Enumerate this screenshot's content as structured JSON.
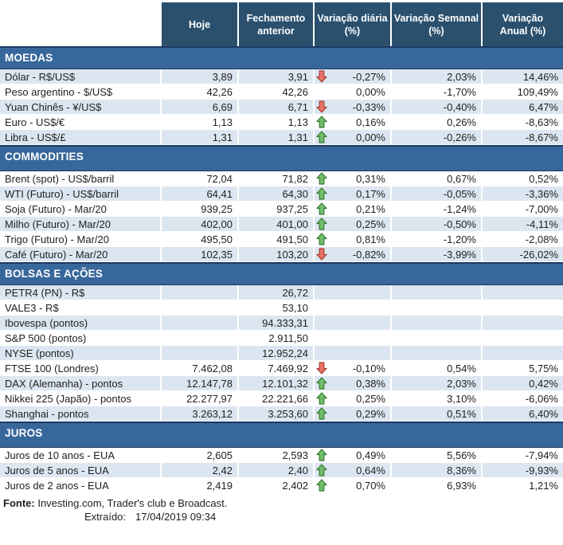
{
  "header": {
    "columns": [
      "",
      "Hoje",
      "Fechamento\nanterior",
      "Variação diária\n(%)",
      "Variação Semanal\n(%)",
      "Variação\nAnual (%)"
    ]
  },
  "sections": [
    {
      "title": "MOEDAS",
      "zebra_first": "shaded",
      "rows": [
        {
          "label": "Dólar - R$/US$",
          "hoje": "3,89",
          "fechamento": "3,91",
          "arrow": "down",
          "diaria": "-0,27%",
          "semanal": "2,03%",
          "anual": "14,46%"
        },
        {
          "label": "Peso argentino - $/US$",
          "hoje": "42,26",
          "fechamento": "42,26",
          "arrow": "none",
          "diaria": "0,00%",
          "semanal": "-1,70%",
          "anual": "109,49%"
        },
        {
          "label": "Yuan Chinês - ¥/US$",
          "hoje": "6,69",
          "fechamento": "6,71",
          "arrow": "down",
          "diaria": "-0,33%",
          "semanal": "-0,40%",
          "anual": "6,47%"
        },
        {
          "label": "Euro - US$/€",
          "hoje": "1,13",
          "fechamento": "1,13",
          "arrow": "up",
          "diaria": "0,16%",
          "semanal": "0,26%",
          "anual": "-8,63%"
        },
        {
          "label": "Libra - US$/£",
          "hoje": "1,31",
          "fechamento": "1,31",
          "arrow": "up",
          "diaria": "0,00%",
          "semanal": "-0,26%",
          "anual": "-8,67%"
        }
      ]
    },
    {
      "title": "COMMODITIES",
      "zebra_first": "plain",
      "rows": [
        {
          "label": "Brent (spot) - US$/barril",
          "hoje": "72,04",
          "fechamento": "71,82",
          "arrow": "up",
          "diaria": "0,31%",
          "semanal": "0,67%",
          "anual": "0,52%"
        },
        {
          "label": "WTI (Futuro) - US$/barril",
          "hoje": "64,41",
          "fechamento": "64,30",
          "arrow": "up",
          "diaria": "0,17%",
          "semanal": "-0,05%",
          "anual": "-3,36%"
        },
        {
          "label": "Soja (Futuro) - Mar/20",
          "hoje": "939,25",
          "fechamento": "937,25",
          "arrow": "up",
          "diaria": "0,21%",
          "semanal": "-1,24%",
          "anual": "-7,00%"
        },
        {
          "label": "Milho (Futuro) - Mar/20",
          "hoje": "402,00",
          "fechamento": "401,00",
          "arrow": "up",
          "diaria": "0,25%",
          "semanal": "-0,50%",
          "anual": "-4,11%"
        },
        {
          "label": "Trigo (Futuro) - Mar/20",
          "hoje": "495,50",
          "fechamento": "491,50",
          "arrow": "up",
          "diaria": "0,81%",
          "semanal": "-1,20%",
          "anual": "-2,08%"
        },
        {
          "label": "Café (Futuro) - Mar/20",
          "hoje": "102,35",
          "fechamento": "103,20",
          "arrow": "down",
          "diaria": "-0,82%",
          "semanal": "-3,99%",
          "anual": "-26,02%"
        }
      ]
    },
    {
      "title": "BOLSAS E AÇÕES",
      "zebra_first": "shaded",
      "rows": [
        {
          "label": "PETR4 (PN) - R$",
          "hoje": "",
          "fechamento": "26,72",
          "arrow": "none",
          "diaria": "",
          "semanal": "",
          "anual": ""
        },
        {
          "label": "VALE3 - R$",
          "hoje": "",
          "fechamento": "53,10",
          "arrow": "none",
          "diaria": "",
          "semanal": "",
          "anual": ""
        },
        {
          "label": "Ibovespa (pontos)",
          "hoje": "",
          "fechamento": "94.333,31",
          "arrow": "none",
          "diaria": "",
          "semanal": "",
          "anual": ""
        },
        {
          "label": "S&P 500 (pontos)",
          "hoje": "",
          "fechamento": "2.911,50",
          "arrow": "none",
          "diaria": "",
          "semanal": "",
          "anual": ""
        },
        {
          "label": "NYSE (pontos)",
          "hoje": "",
          "fechamento": "12.952,24",
          "arrow": "none",
          "diaria": "",
          "semanal": "",
          "anual": ""
        },
        {
          "label": "FTSE 100 (Londres)",
          "hoje": "7.462,08",
          "fechamento": "7.469,92",
          "arrow": "down",
          "diaria": "-0,10%",
          "semanal": "0,54%",
          "anual": "5,75%"
        },
        {
          "label": "DAX (Alemanha) - pontos",
          "hoje": "12.147,78",
          "fechamento": "12.101,32",
          "arrow": "up",
          "diaria": "0,38%",
          "semanal": "2,03%",
          "anual": "0,42%"
        },
        {
          "label": "Nikkei 225 (Japão) - pontos",
          "hoje": "22.277,97",
          "fechamento": "22.221,66",
          "arrow": "up",
          "diaria": "0,25%",
          "semanal": "3,10%",
          "anual": "-6,06%"
        },
        {
          "label": "Shanghai - pontos",
          "hoje": "3.263,12",
          "fechamento": "3.253,60",
          "arrow": "up",
          "diaria": "0,29%",
          "semanal": "0,51%",
          "anual": "6,40%"
        }
      ]
    },
    {
      "title": "JUROS",
      "zebra_first": "plain",
      "rows": [
        {
          "label": "Juros de 10 anos - EUA",
          "hoje": "2,605",
          "fechamento": "2,593",
          "arrow": "up",
          "diaria": "0,49%",
          "semanal": "5,56%",
          "anual": "-7,94%"
        },
        {
          "label": "Juros de 5 anos - EUA",
          "hoje": "2,42",
          "fechamento": "2,40",
          "arrow": "up",
          "diaria": "0,64%",
          "semanal": "8,36%",
          "anual": "-9,93%"
        },
        {
          "label": "Juros de 2 anos - EUA",
          "hoje": "2,419",
          "fechamento": "2,402",
          "arrow": "up",
          "diaria": "0,70%",
          "semanal": "6,93%",
          "anual": "1,21%"
        }
      ]
    }
  ],
  "footer": {
    "fonte_label": "Fonte:",
    "fonte_text": " Investing.com, Trader's club e Broadcast.",
    "extraido_label": "Extraído:",
    "extraido_value": "17/04/2019 09:34"
  },
  "colors": {
    "header_bg": "#2A506E",
    "section_bar_bg": "#38679B",
    "section_bar_border": "#1F3864",
    "row_shaded": "#DCE6F1",
    "up_arrow_fill": "#72BE6C",
    "up_arrow_stroke": "#357A32",
    "down_arrow_fill": "#E9746A",
    "down_arrow_stroke": "#A93E32"
  },
  "icons": {
    "up": "up-arrow-icon",
    "down": "down-arrow-icon"
  }
}
